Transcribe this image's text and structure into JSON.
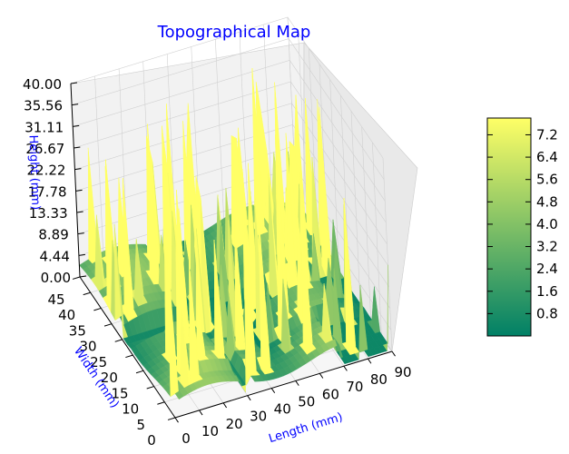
{
  "chart_data": {
    "type": "surface3d",
    "title": "Topographical Map",
    "xlabel": "Length (mm)",
    "ylabel": "Width (mm)",
    "zlabel": "Height (mm)",
    "label_color": "#0000ff",
    "colormap": "summer",
    "colormap_colors": [
      "#008066",
      "#ffff66"
    ],
    "xlim": [
      0,
      90
    ],
    "ylim": [
      0,
      45
    ],
    "zlim": [
      0,
      40
    ],
    "xticks": [
      "0",
      "10",
      "20",
      "30",
      "40",
      "50",
      "60",
      "70",
      "80",
      "90"
    ],
    "yticks": [
      "0",
      "5",
      "10",
      "15",
      "20",
      "25",
      "30",
      "35",
      "40",
      "45"
    ],
    "zticks": [
      "0.00",
      "4.44",
      "8.89",
      "13.33",
      "17.78",
      "22.22",
      "26.67",
      "31.11",
      "35.56",
      "40.00"
    ],
    "colorbar": {
      "ticks": [
        "0.8",
        "1.6",
        "2.4",
        "3.2",
        "4.0",
        "4.8",
        "5.6",
        "6.4",
        "7.2"
      ],
      "range": [
        0,
        7.8
      ]
    },
    "grid": true,
    "surface_note": "height field with plateaus and tall narrow spikes"
  }
}
